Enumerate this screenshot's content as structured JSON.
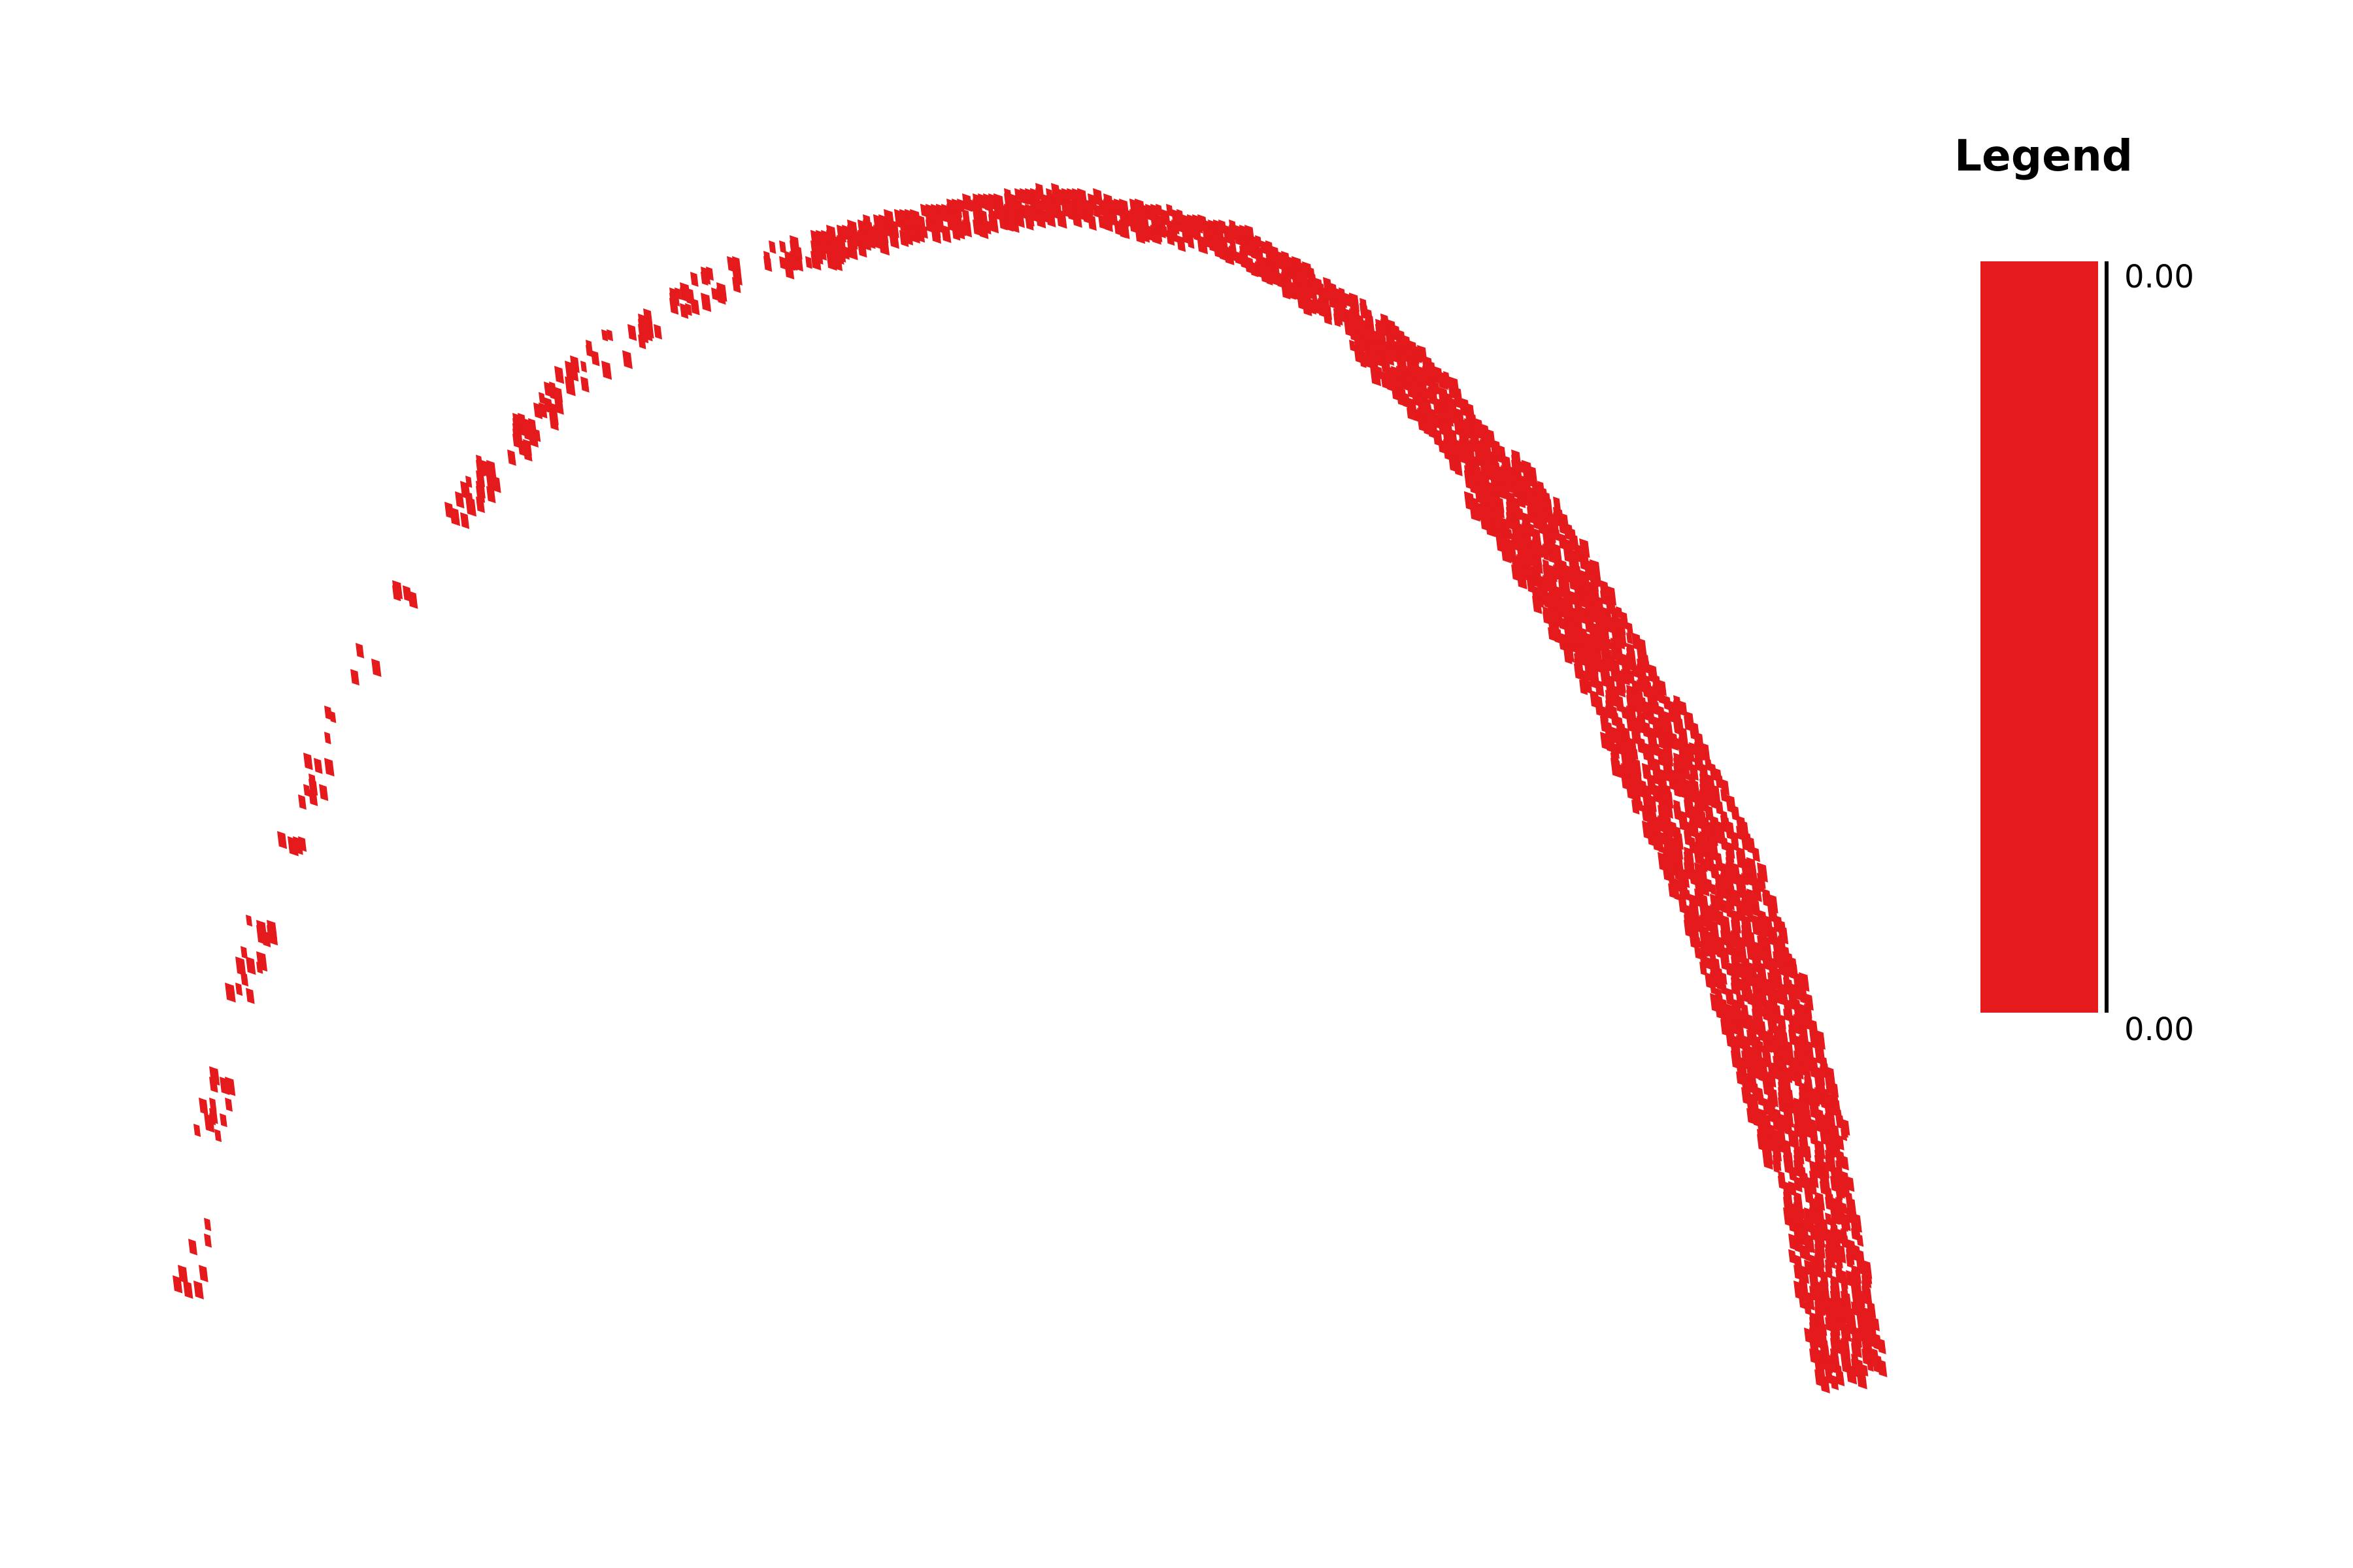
{
  "chart_data": {
    "type": "heatmap",
    "title": "",
    "xlabel": "",
    "ylabel": "",
    "grid": false,
    "legend_position": "right",
    "colorscale": [
      "#e41a1c",
      "#e41a1c"
    ],
    "legend": {
      "title": "Legend",
      "max_label": "0.00",
      "min_label": "0.00"
    },
    "band_color": "#e41a1c",
    "arc_points": [
      {
        "x": 0.02,
        "y": 0.1
      },
      {
        "x": 0.03,
        "y": 0.2
      },
      {
        "x": 0.05,
        "y": 0.33
      },
      {
        "x": 0.08,
        "y": 0.45
      },
      {
        "x": 0.11,
        "y": 0.56
      },
      {
        "x": 0.14,
        "y": 0.63
      },
      {
        "x": 0.19,
        "y": 0.73
      },
      {
        "x": 0.25,
        "y": 0.82
      },
      {
        "x": 0.33,
        "y": 0.89
      },
      {
        "x": 0.43,
        "y": 0.93
      },
      {
        "x": 0.53,
        "y": 0.95
      },
      {
        "x": 0.63,
        "y": 0.92
      },
      {
        "x": 0.7,
        "y": 0.86
      },
      {
        "x": 0.75,
        "y": 0.79
      },
      {
        "x": 0.8,
        "y": 0.7
      },
      {
        "x": 0.85,
        "y": 0.59
      },
      {
        "x": 0.9,
        "y": 0.46
      },
      {
        "x": 0.94,
        "y": 0.32
      },
      {
        "x": 0.97,
        "y": 0.18
      },
      {
        "x": 0.99,
        "y": 0.03
      }
    ]
  }
}
